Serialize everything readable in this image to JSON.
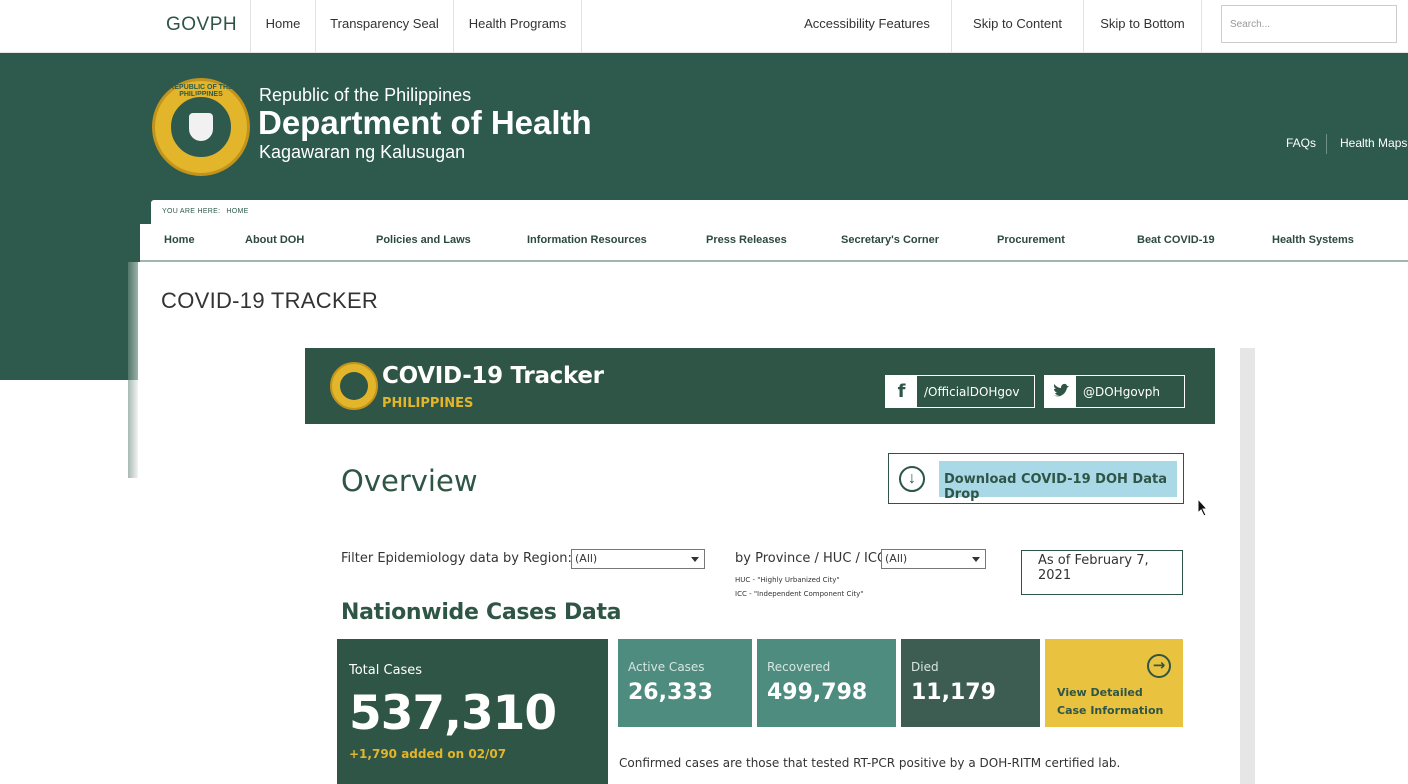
{
  "topbar": {
    "brand": "GOVPH",
    "nav": [
      "Home",
      "Transparency Seal",
      "Health Programs"
    ],
    "right_nav": [
      "Accessibility Features",
      "Skip to Content",
      "Skip to Bottom"
    ],
    "search_placeholder": "Search..."
  },
  "header": {
    "line1": "Republic of the Philippines",
    "line2": "Department of Health",
    "line3": "Kagawaran ng Kalusugan",
    "links": [
      "FAQs",
      "Health Maps"
    ],
    "seal_text": "REPUBLIC OF THE PHILIPPINES"
  },
  "breadcrumb": {
    "prefix": "YOU ARE HERE:",
    "current": "HOME"
  },
  "mainnav": [
    "Home",
    "About DOH",
    "Policies and Laws",
    "Information Resources",
    "Press Releases",
    "Secretary's Corner",
    "Procurement",
    "Beat COVID-19",
    "Health Systems"
  ],
  "page_title": "COVID-19 TRACKER",
  "tracker": {
    "title": "COVID-19 Tracker",
    "subtitle": "PHILIPPINES",
    "facebook": {
      "icon": "f",
      "label": "/OfficialDOHgov"
    },
    "twitter": {
      "icon": "t",
      "label": "@DOHgovph"
    },
    "overview": "Overview",
    "download": "Download COVID-19 DOH Data Drop",
    "filter_region_label": "Filter Epidemiology data by Region:",
    "filter_region_value": "(All)",
    "filter_province_label": "by Province / HUC / ICC:",
    "filter_province_value": "(All)",
    "note_huc": "HUC - \"Highly Urbanized City\"",
    "note_icc": "ICC - \"Independent Component City\"",
    "as_of": "As of February 7, 2021",
    "nationwide_title": "Nationwide Cases Data",
    "total": {
      "label": "Total Cases",
      "value": "537,310",
      "added": "+1,790 added on 02/07"
    },
    "active": {
      "label": "Active Cases",
      "value": "26,333",
      "color": "#4f8c80"
    },
    "recovered": {
      "label": "Recovered",
      "value": "499,798",
      "color": "#4f8c80"
    },
    "died": {
      "label": "Died",
      "value": "11,179",
      "color": "#3d5d52"
    },
    "detail": {
      "line1": "View Detailed",
      "line2": "Case Information"
    },
    "confirmed_note": "Confirmed cases are those that tested RT-PCR positive by a DOH-RITM certified lab."
  },
  "colors": {
    "brand_green": "#2d5a4c",
    "gold": "#e3b52b",
    "download_bg": "#a9d9e6"
  }
}
